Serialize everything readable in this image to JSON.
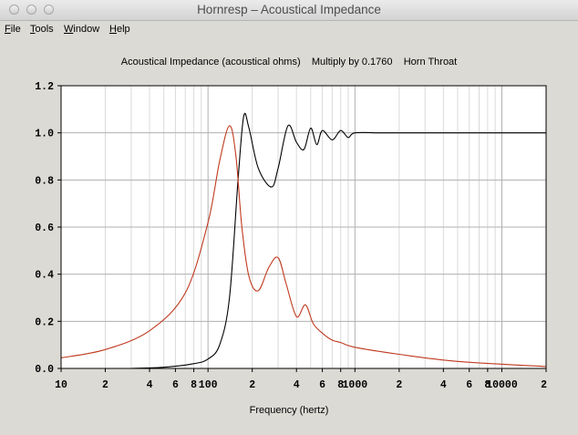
{
  "window": {
    "title": "Hornresp – Acoustical Impedance",
    "buttons": [
      "close-icon",
      "minimize-icon",
      "zoom-icon"
    ]
  },
  "menu": {
    "file": {
      "mnemonic": "F",
      "rest": "ile"
    },
    "tools": {
      "mnemonic": "T",
      "rest": "ools"
    },
    "window": {
      "mnemonic": "W",
      "rest": "indow"
    },
    "help": {
      "mnemonic": "H",
      "rest": "elp"
    }
  },
  "chart_data": {
    "type": "line",
    "title": "Acoustical Impedance (acoustical ohms)    Multiply by 0.1760    Horn Throat",
    "xlabel": "Frequency (hertz)",
    "ylabel": "",
    "xscale": "log",
    "xlim": [
      10,
      20000
    ],
    "ylim": [
      0,
      1.2
    ],
    "grid": true,
    "x_tick_labels": [
      "10",
      "2",
      "4",
      "6",
      "8",
      "100",
      "2",
      "4",
      "6",
      "8",
      "1000",
      "2",
      "4",
      "6",
      "8",
      "10000",
      "2"
    ],
    "y_tick_labels": [
      "0.0",
      "0.2",
      "0.4",
      "0.6",
      "0.8",
      "1.0",
      "1.2"
    ],
    "series": [
      {
        "color": "#000000",
        "x": [
          30,
          50,
          80,
          100,
          120,
          140,
          160,
          175,
          190,
          220,
          270,
          300,
          350,
          400,
          450,
          500,
          550,
          600,
          700,
          800,
          900,
          1000,
          1500,
          2000,
          5000,
          20000
        ],
        "y": [
          0.0,
          0.005,
          0.02,
          0.04,
          0.1,
          0.3,
          0.8,
          1.07,
          1.02,
          0.85,
          0.77,
          0.85,
          1.03,
          0.96,
          0.93,
          1.02,
          0.95,
          1.01,
          0.97,
          1.01,
          0.98,
          1.0,
          1.0,
          1.0,
          1.0,
          1.0
        ]
      },
      {
        "color": "#c0391e",
        "x": [
          10,
          20,
          40,
          70,
          100,
          120,
          140,
          155,
          170,
          190,
          220,
          260,
          300,
          340,
          400,
          460,
          520,
          600,
          700,
          800,
          1000,
          2000,
          5000,
          20000
        ],
        "y": [
          0.045,
          0.08,
          0.16,
          0.32,
          0.62,
          0.88,
          1.03,
          0.9,
          0.6,
          0.39,
          0.33,
          0.43,
          0.47,
          0.36,
          0.22,
          0.27,
          0.19,
          0.15,
          0.12,
          0.11,
          0.09,
          0.06,
          0.03,
          0.008
        ]
      }
    ]
  }
}
